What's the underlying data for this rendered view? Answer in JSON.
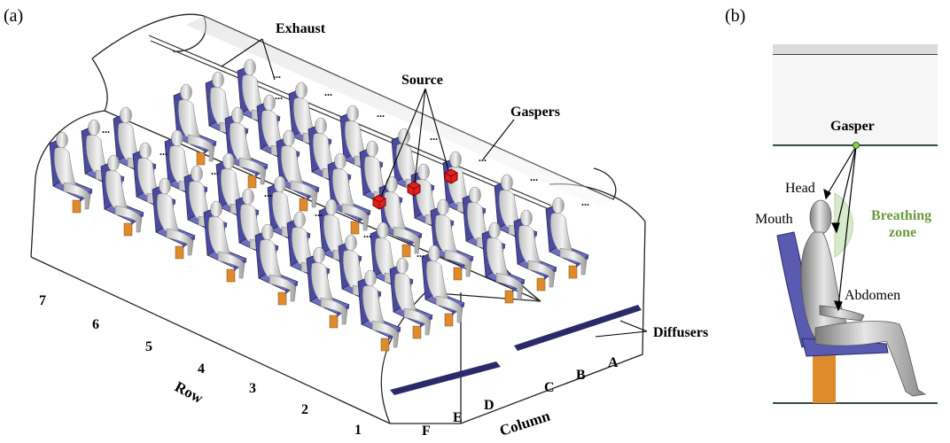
{
  "panel_a": {
    "tag": "(a)",
    "labels": {
      "exhaust": "Exhaust",
      "source": "Source",
      "gaspers": "Gaspers",
      "diffusers": "Diffusers",
      "row": "Row",
      "column": "Column"
    },
    "rows": [
      "7",
      "6",
      "5",
      "4",
      "3",
      "2",
      "1"
    ],
    "columns": [
      "F",
      "E",
      "D",
      "C",
      "B",
      "A"
    ],
    "ellipsis": "..."
  },
  "panel_b": {
    "tag": "(b)",
    "labels": {
      "gasper": "Gasper",
      "head": "Head",
      "mouth": "Mouth",
      "breathing_zone_line1": "Breathing",
      "breathing_zone_line2": "zone",
      "abdomen": "Abdomen"
    }
  },
  "colors": {
    "seat": "#4a4aa0",
    "seat_light": "#6f6fc2",
    "leg": "#e08a2e",
    "source": "#e02020",
    "breathing_zone": "#cfe6c0",
    "gasper_dot": "#8ed44a"
  }
}
